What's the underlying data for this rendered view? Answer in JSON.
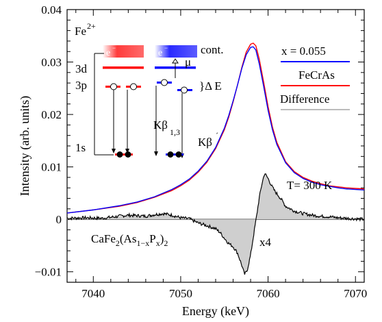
{
  "chart_data": {
    "type": "line",
    "xlabel": "Energy (keV)",
    "ylabel": "Intensity (arb. units)",
    "xlim": [
      7037,
      7071
    ],
    "ylim": [
      -0.012,
      0.04
    ],
    "xticks": [
      7040,
      7050,
      7060,
      7070
    ],
    "xtick_labels": [
      "7040",
      "7050",
      "7060",
      "7070"
    ],
    "yticks": [
      -0.01,
      0,
      0.01,
      0.02,
      0.03,
      0.04
    ],
    "ytick_labels": [
      "−0.01",
      "0",
      "0.01",
      "0.02",
      "0.03",
      "0.04"
    ],
    "grid": false,
    "legend_position": "top-right",
    "series": [
      {
        "name": "x = 0.055",
        "color": "#0000ff",
        "x": [
          7037,
          7040,
          7043,
          7045,
          7047,
          7049,
          7050,
          7051,
          7052,
          7053,
          7054,
          7055,
          7055.5,
          7056,
          7056.5,
          7057,
          7057.5,
          7058,
          7058.3,
          7058.6,
          7059,
          7059.5,
          7060,
          7060.5,
          7061,
          7062,
          7063,
          7064,
          7065,
          7066,
          7067,
          7068,
          7069,
          7070,
          7071
        ],
        "y": [
          0.0012,
          0.0018,
          0.0026,
          0.0033,
          0.0043,
          0.0057,
          0.0066,
          0.0077,
          0.0092,
          0.0111,
          0.0137,
          0.0174,
          0.0198,
          0.0226,
          0.0256,
          0.0288,
          0.0314,
          0.0328,
          0.0329,
          0.0323,
          0.0296,
          0.0253,
          0.0208,
          0.0171,
          0.0143,
          0.0108,
          0.0089,
          0.0078,
          0.0071,
          0.0066,
          0.0063,
          0.006,
          0.0058,
          0.0057,
          0.0056
        ]
      },
      {
        "name": "FeCrAs",
        "color": "#ff0000",
        "x": [
          7037,
          7040,
          7043,
          7045,
          7047,
          7049,
          7050,
          7051,
          7052,
          7053,
          7054,
          7055,
          7055.5,
          7056,
          7056.5,
          7057,
          7057.5,
          7058,
          7058.3,
          7058.6,
          7059,
          7059.5,
          7060,
          7060.5,
          7061,
          7062,
          7063,
          7064,
          7065,
          7066,
          7067,
          7068,
          7069,
          7070,
          7071
        ],
        "y": [
          0.0012,
          0.0018,
          0.0025,
          0.0032,
          0.0042,
          0.0055,
          0.0064,
          0.0075,
          0.009,
          0.0109,
          0.0135,
          0.0171,
          0.0195,
          0.0224,
          0.0256,
          0.029,
          0.0319,
          0.0334,
          0.0336,
          0.0331,
          0.0305,
          0.0261,
          0.0215,
          0.0176,
          0.0147,
          0.011,
          0.0091,
          0.008,
          0.0073,
          0.0068,
          0.0064,
          0.0062,
          0.006,
          0.0059,
          0.0058
        ]
      },
      {
        "name": "Difference",
        "color": "#000000",
        "fill": "#cfcfcf",
        "x": [
          7037,
          7039,
          7041,
          7043,
          7044,
          7045,
          7046,
          7047,
          7048,
          7049,
          7050,
          7051,
          7052,
          7053,
          7054,
          7054.5,
          7055,
          7055.5,
          7056,
          7056.5,
          7057,
          7057.3,
          7057.6,
          7058,
          7058.3,
          7058.7,
          7059,
          7059.3,
          7059.6,
          7060,
          7060.4,
          7060.8,
          7061.2,
          7061.6,
          7062,
          7063,
          7064,
          7065,
          7066,
          7067,
          7068,
          7069,
          7070,
          7071
        ],
        "y": [
          0.0002,
          0.0003,
          0.0002,
          0.0006,
          0.0008,
          0.0007,
          0.0006,
          0.0009,
          0.0011,
          0.0008,
          0.0003,
          0.0001,
          -0.0007,
          -0.0012,
          -0.0018,
          -0.0025,
          -0.0036,
          -0.0046,
          -0.0052,
          -0.0064,
          -0.0088,
          -0.0105,
          -0.0098,
          -0.0068,
          -0.0035,
          0.0008,
          0.0042,
          0.0068,
          0.0088,
          0.0078,
          0.0064,
          0.0053,
          0.0045,
          0.0036,
          0.0025,
          0.0016,
          0.0011,
          0.0008,
          0.0006,
          0.0005,
          0.0003,
          0.0002,
          0.0001,
          0.0
        ]
      }
    ],
    "annotations": {
      "ion": "Fe",
      "ion_charge": "2+",
      "continuum": "cont.",
      "mu": "μ",
      "level_3d": "3d",
      "level_3p": "3p",
      "level_1s": "1s",
      "electron_symbol": "e",
      "electron_charge": "−",
      "delta_e": "}Δ E",
      "kbeta13": "Kβ",
      "kbeta13_sub": "1,3",
      "kbeta_prime": "Kβ",
      "kbeta_prime_sup": "´",
      "temperature": "T= 300 K",
      "scale_factor": "x4",
      "formula_parts": [
        "CaFe",
        "2",
        "(As",
        "1−x",
        "P",
        "x",
        ")",
        "2"
      ]
    }
  }
}
